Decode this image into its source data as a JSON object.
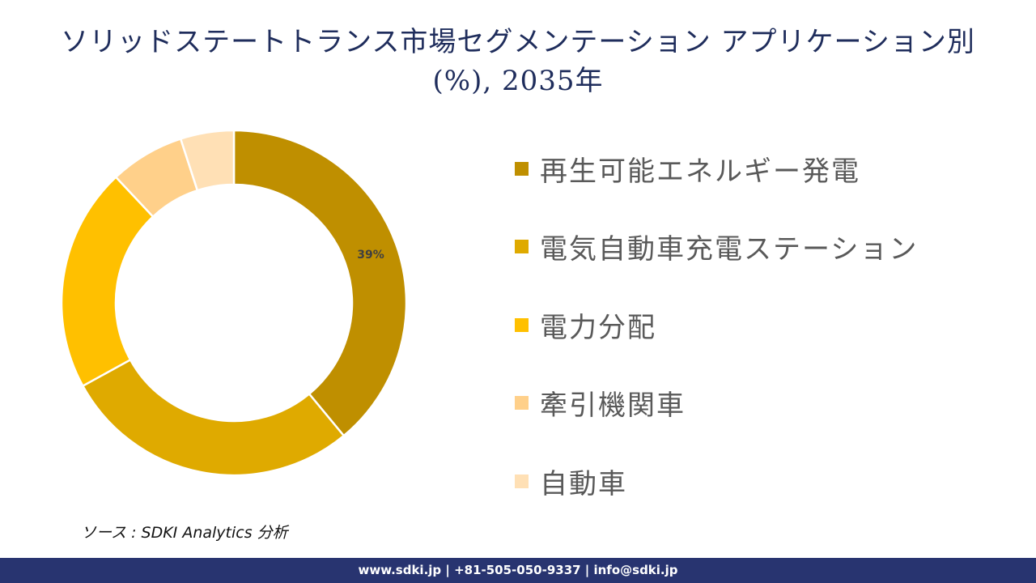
{
  "title": {
    "line1": "ソリッドステートトランス市場セグメンテーション アプリケーション別",
    "line2": "(%), 2035年"
  },
  "chart_data": {
    "type": "pie",
    "subtype": "donut",
    "title": "ソリッドステートトランス市場セグメンテーション アプリケーション別 (%), 2035年",
    "categories": [
      "再生可能エネルギー発電",
      "電気自動車充電ステーション",
      "電力分配",
      "牽引機関車",
      "自動車"
    ],
    "values": [
      39,
      28,
      21,
      7,
      5
    ],
    "colors": [
      "#bf8f00",
      "#dfaa00",
      "#ffc000",
      "#ffd08a",
      "#ffe0b5"
    ],
    "data_labels": [
      "39%",
      "",
      "",
      "",
      ""
    ],
    "legend_position": "right",
    "start_angle": 0,
    "direction": "clockwise"
  },
  "legend": {
    "items": [
      {
        "label": "再生可能エネルギー発電",
        "color": "#bf8f00"
      },
      {
        "label": "電気自動車充電ステーション",
        "color": "#dfaa00"
      },
      {
        "label": "電力分配",
        "color": "#ffc000"
      },
      {
        "label": "牽引機関車",
        "color": "#ffd08a"
      },
      {
        "label": "自動車",
        "color": "#ffe0b5"
      }
    ]
  },
  "labels": {
    "slice0": "39%"
  },
  "source": "ソース : SDKI Analytics 分析",
  "footer": {
    "text": "www.sdki.jp | +81-505-050-9337 | info@sdki.jp",
    "background": "#283470"
  }
}
